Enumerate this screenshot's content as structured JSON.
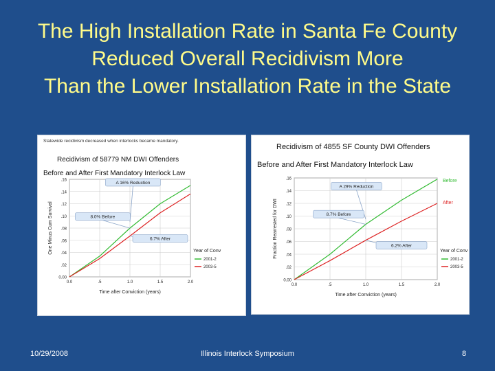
{
  "slide": {
    "title_lines": [
      "The High Installation Rate in Santa Fe County",
      "Reduced Overall Recidivism More",
      "Than the Lower Installation Rate in the State"
    ],
    "footer": {
      "date": "10/29/2008",
      "event": "Illinois Interlock Symposium",
      "page": "8"
    }
  },
  "colors": {
    "background": "#1f4e8c",
    "title": "#fffb8a",
    "before_series": "#33bb33",
    "after_series": "#dd2222",
    "callout": "#d9e7f7",
    "callout_border": "#8aa4c8"
  },
  "chart_data": [
    {
      "type": "line",
      "note": "Statewide recidivism decreased when interlocks became mandatory.",
      "title": "Recidivism of 58779 NM DWI Offenders",
      "subtitle": "Before and After First Mandatory Interlock Law",
      "xlabel": "Time after Conviction (years)",
      "ylabel": "One Minus Cum Survival",
      "xlim": [
        0,
        2.0
      ],
      "ylim": [
        0,
        0.16
      ],
      "x_ticks": [
        0,
        0.5,
        1.0,
        1.5,
        2.0
      ],
      "x_tick_labels": [
        "0.0",
        ".5",
        "1.0",
        "1.5",
        "2.0"
      ],
      "y_ticks": [
        0,
        0.02,
        0.04,
        0.06,
        0.08,
        0.1,
        0.12,
        0.14,
        0.16
      ],
      "y_tick_labels": [
        "0.00",
        ".02",
        ".04",
        ".06",
        ".08",
        ".10",
        ".12",
        ".14",
        ".16"
      ],
      "grid": true,
      "legend": {
        "title": "Year of Conv",
        "position": "right",
        "entries": [
          "2001-2",
          "2003-5"
        ]
      },
      "series": [
        {
          "name": "2001-2",
          "color": "#33bb33",
          "x": [
            0,
            0.5,
            1.0,
            1.5,
            2.0
          ],
          "y": [
            0,
            0.034,
            0.08,
            0.12,
            0.15
          ]
        },
        {
          "name": "2003-5",
          "color": "#dd2222",
          "x": [
            0,
            0.5,
            1.0,
            1.5,
            2.0
          ],
          "y": [
            0,
            0.03,
            0.067,
            0.105,
            0.136
          ]
        }
      ],
      "annotations": [
        {
          "text": "A 16% Reduction",
          "x": 1.05,
          "y": 0.155,
          "target_x": 1.0,
          "target_y": 0.09
        },
        {
          "text": "8.0% Before",
          "x": 0.55,
          "y": 0.099,
          "target_x": 1.0,
          "target_y": 0.08
        },
        {
          "text": "6.7% After",
          "x": 1.5,
          "y": 0.063,
          "target_x": 1.0,
          "target_y": 0.067
        }
      ]
    },
    {
      "type": "line",
      "title": "Recidivism of 4855 SF County  DWI Offenders",
      "subtitle": "Before and After First Mandatory Interlock Law",
      "xlabel": "Time after Conviction (years)",
      "ylabel": "Fraction Rearrested for DWI",
      "xlim": [
        0,
        2.0
      ],
      "ylim": [
        0,
        0.16
      ],
      "x_ticks": [
        0,
        0.5,
        1.0,
        1.5,
        2.0
      ],
      "x_tick_labels": [
        "0.0",
        ".5",
        "1.0",
        "1.5",
        "2.0"
      ],
      "y_ticks": [
        0,
        0.02,
        0.04,
        0.06,
        0.08,
        0.1,
        0.12,
        0.14,
        0.16
      ],
      "y_tick_labels": [
        "0.00",
        ".02",
        ".04",
        ".06",
        ".08",
        ".10",
        ".12",
        ".14",
        ".16"
      ],
      "grid": true,
      "legend": {
        "title": "Year of Conv",
        "position": "right",
        "entries": [
          "2001-2",
          "2003-5"
        ]
      },
      "side_labels": [
        {
          "text": "Before",
          "color": "#33bb33",
          "y": 0.157
        },
        {
          "text": "After",
          "color": "#dd2222",
          "y": 0.122
        }
      ],
      "series": [
        {
          "name": "2001-2",
          "color": "#33bb33",
          "x": [
            0,
            0.5,
            1.0,
            1.5,
            2.0
          ],
          "y": [
            0,
            0.04,
            0.087,
            0.125,
            0.158
          ]
        },
        {
          "name": "2003-5",
          "color": "#dd2222",
          "x": [
            0,
            0.5,
            1.0,
            1.5,
            2.0
          ],
          "y": [
            0,
            0.03,
            0.062,
            0.092,
            0.12
          ]
        }
      ],
      "annotations": [
        {
          "text": "A 29% Reduction",
          "x": 0.87,
          "y": 0.147,
          "target_x": 1.0,
          "target_y": 0.095
        },
        {
          "text": "8.7% Before",
          "x": 0.62,
          "y": 0.103,
          "target_x": 1.0,
          "target_y": 0.087
        },
        {
          "text": "6.2% After",
          "x": 1.5,
          "y": 0.054,
          "target_x": 1.0,
          "target_y": 0.062
        }
      ]
    }
  ]
}
